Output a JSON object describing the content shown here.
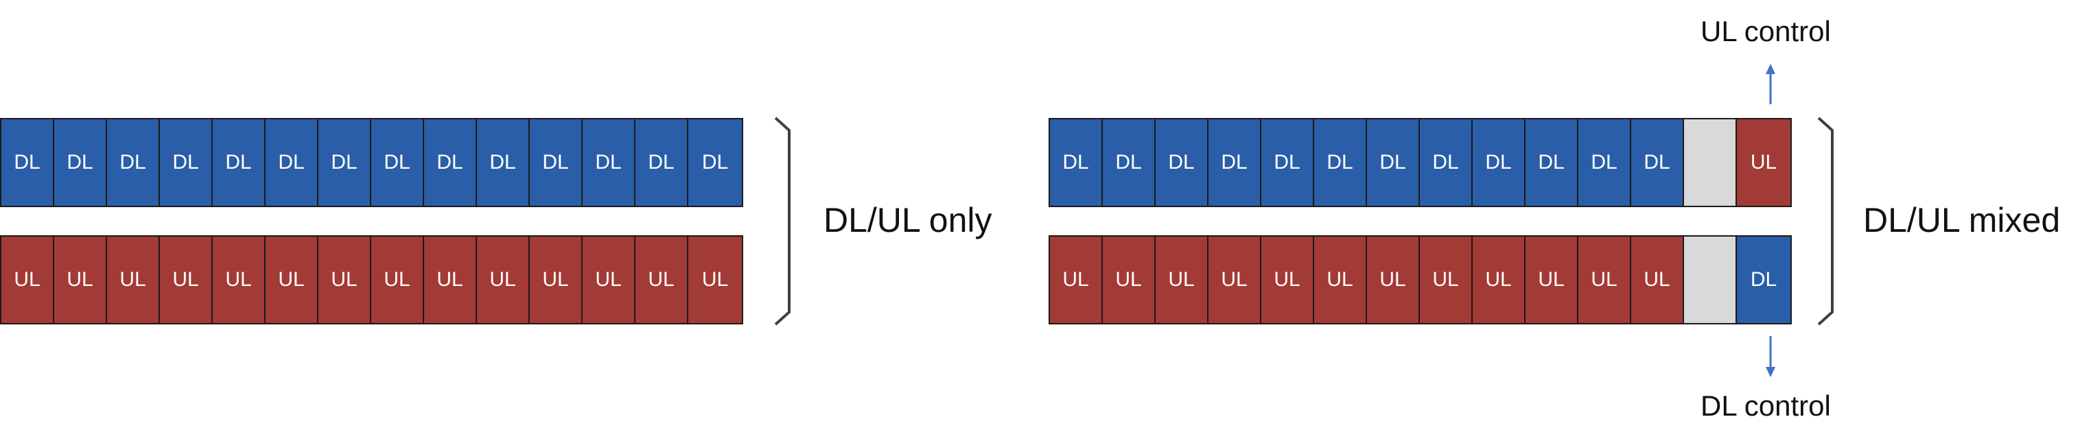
{
  "left_group": {
    "label": "DL/UL only",
    "rows": [
      {
        "cells": [
          "DL",
          "DL",
          "DL",
          "DL",
          "DL",
          "DL",
          "DL",
          "DL",
          "DL",
          "DL",
          "DL",
          "DL",
          "DL",
          "DL"
        ]
      },
      {
        "cells": [
          "UL",
          "UL",
          "UL",
          "UL",
          "UL",
          "UL",
          "UL",
          "UL",
          "UL",
          "UL",
          "UL",
          "UL",
          "UL",
          "UL"
        ]
      }
    ]
  },
  "right_group": {
    "label": "DL/UL mixed",
    "rows": [
      {
        "cells": [
          "DL",
          "DL",
          "DL",
          "DL",
          "DL",
          "DL",
          "DL",
          "DL",
          "DL",
          "DL",
          "DL",
          "DL",
          "",
          "UL"
        ]
      },
      {
        "cells": [
          "UL",
          "UL",
          "UL",
          "UL",
          "UL",
          "UL",
          "UL",
          "UL",
          "UL",
          "UL",
          "UL",
          "UL",
          "",
          "DL"
        ]
      }
    ],
    "top_annotation": "UL control",
    "bottom_annotation": "DL control"
  },
  "colors": {
    "dl": "#2a5ea8",
    "ul": "#a23a36",
    "guard": "#d9d9d9",
    "arrow": "#4472c4"
  }
}
